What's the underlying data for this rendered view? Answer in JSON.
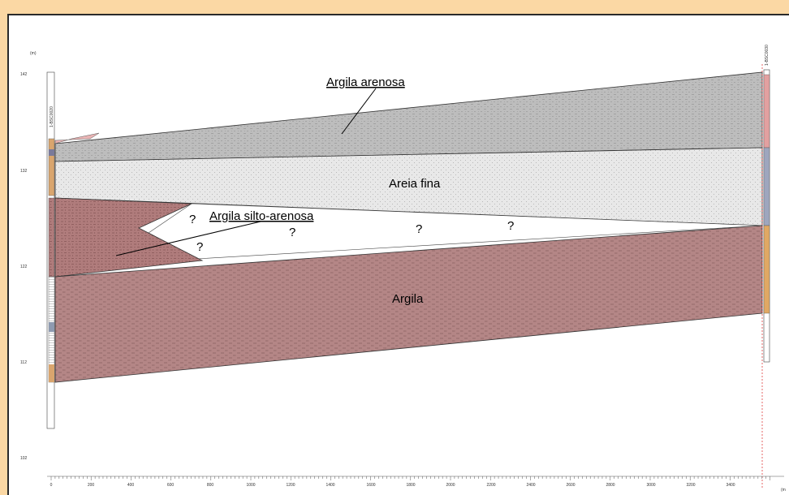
{
  "axes": {
    "y_unit": "(m)",
    "x_unit": "(m",
    "y_ticks": [
      "142",
      "132",
      "122",
      "112",
      "102"
    ],
    "x_ticks": [
      "0",
      "200",
      "400",
      "600",
      "800",
      "1000",
      "1200",
      "1400",
      "1600",
      "1800",
      "2000",
      "2200",
      "2400",
      "2600",
      "2800",
      "3000",
      "3200",
      "3400"
    ]
  },
  "layers": {
    "argila_arenosa": "Argila arenosa",
    "areia_fina": "Areia fina",
    "argila_silto_arenosa": "Argila silto-arenosa",
    "argila": "Argila"
  },
  "unknown_marks": [
    "?",
    "?",
    "?",
    "?",
    "?"
  ],
  "boreholes": {
    "left_code": "1-BSC0020",
    "right_code": "1-BSC0030"
  },
  "colors": {
    "page_bg": "#fbd8a4",
    "argila_arenosa": "#bdbdbd",
    "areia_fina": "#e8e8e8",
    "argila": "#b48686"
  }
}
